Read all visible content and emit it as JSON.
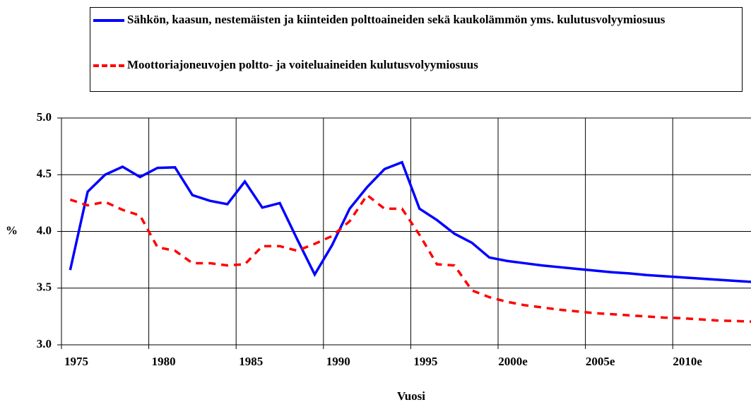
{
  "chart_data": {
    "type": "line",
    "xlabel": "Vuosi",
    "ylabel": "%",
    "categories": [
      "1975",
      null,
      null,
      null,
      null,
      "1980",
      null,
      null,
      null,
      null,
      "1985",
      null,
      null,
      null,
      null,
      "1990",
      null,
      null,
      null,
      null,
      "1995",
      null,
      null,
      null,
      null,
      "2000e",
      null,
      null,
      null,
      null,
      "2005e",
      null,
      null,
      null,
      null,
      "2010e",
      null,
      null,
      null,
      null
    ],
    "series": [
      {
        "name": "Sähkön, kaasun, nestemäisten ja kiinteiden polttoaineiden sekä kaukolämmön yms. kulutusvolyymiosuus",
        "color": "#0000ff",
        "style": "solid",
        "values": [
          3.66,
          4.35,
          4.5,
          4.57,
          4.48,
          4.56,
          4.565,
          4.32,
          4.27,
          4.24,
          4.44,
          4.21,
          4.25,
          3.93,
          3.62,
          3.88,
          4.2,
          4.39,
          4.55,
          4.61,
          4.2,
          4.1,
          3.98,
          3.9,
          3.77,
          3.74,
          3.72,
          3.7,
          3.685,
          3.67,
          3.655,
          3.64,
          3.63,
          3.615,
          3.605,
          3.595,
          3.585,
          3.575,
          3.565,
          3.555
        ]
      },
      {
        "name": "Moottoriajoneuvojen poltto- ja voiteluaineiden kulutusvolyymiosuus",
        "color": "#ff0000",
        "style": "dashed",
        "values": [
          4.28,
          4.23,
          4.26,
          4.19,
          4.14,
          3.86,
          3.83,
          3.72,
          3.72,
          3.7,
          3.71,
          3.87,
          3.87,
          3.83,
          3.89,
          3.96,
          4.09,
          4.32,
          4.2,
          4.2,
          3.97,
          3.71,
          3.7,
          3.48,
          3.42,
          3.38,
          3.35,
          3.33,
          3.31,
          3.295,
          3.28,
          3.27,
          3.26,
          3.25,
          3.24,
          3.235,
          3.225,
          3.215,
          3.21,
          3.205
        ]
      }
    ],
    "ylim": [
      3.0,
      5.0
    ],
    "yticks": [
      {
        "value": 3.0,
        "label": "3.0"
      },
      {
        "value": 3.5,
        "label": "3.5"
      },
      {
        "value": 4.0,
        "label": "4.0"
      },
      {
        "value": 4.5,
        "label": "4.5"
      },
      {
        "value": 5.0,
        "label": "5.0"
      }
    ],
    "grid": true
  }
}
